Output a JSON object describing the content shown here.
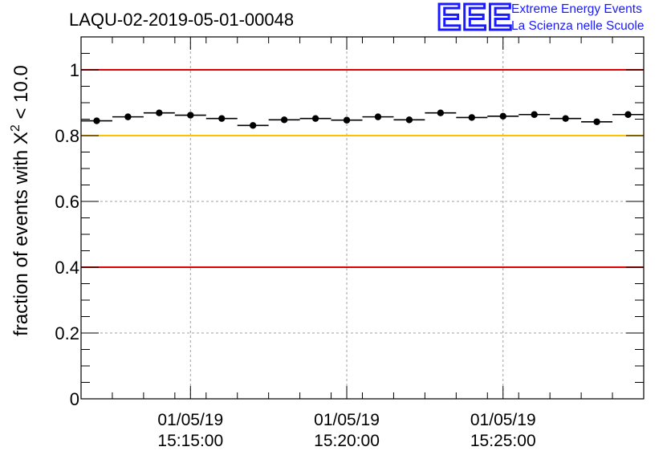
{
  "title": "LAQU-02-2019-05-01-00048",
  "logo": {
    "letters": "EEE",
    "line1": "Extreme Energy Events",
    "line2": "La Scienza nelle Scuole"
  },
  "colors": {
    "red_line": "#e00000",
    "yellow_line": "#ffc000",
    "marker": "#000000",
    "grid": "#a0a0a0",
    "logo_blue": "#1a1aff"
  },
  "chart_data": {
    "type": "scatter",
    "title": "LAQU-02-2019-05-01-00048",
    "ylabel_prefix": "fraction of events with ",
    "ylabel_symbol": "X",
    "ylabel_sup": "2",
    "ylabel_suffix": " < 10.0",
    "ylim": [
      0,
      1.1
    ],
    "y_ticks": [
      0,
      0.2,
      0.4,
      0.6,
      0.8,
      1
    ],
    "y_tick_labels": [
      "0",
      "0.2",
      "0.4",
      "0.6",
      "0.8",
      "1"
    ],
    "x_range_minutes": [
      0,
      18
    ],
    "x_tick_minutes": [
      3.5,
      8.5,
      13.5
    ],
    "x_tick_labels": [
      [
        "01/05/19",
        "15:15:00"
      ],
      [
        "01/05/19",
        "15:20:00"
      ],
      [
        "01/05/19",
        "15:25:00"
      ]
    ],
    "bin_width_minutes": 1,
    "values": [
      0.845,
      0.857,
      0.869,
      0.862,
      0.852,
      0.831,
      0.848,
      0.852,
      0.847,
      0.857,
      0.848,
      0.869,
      0.855,
      0.859,
      0.864,
      0.852,
      0.842,
      0.864
    ],
    "reference_lines": [
      {
        "y": 1.0,
        "color": "red"
      },
      {
        "y": 0.8,
        "color": "yellow"
      },
      {
        "y": 0.4,
        "color": "red"
      }
    ],
    "grid": true
  }
}
